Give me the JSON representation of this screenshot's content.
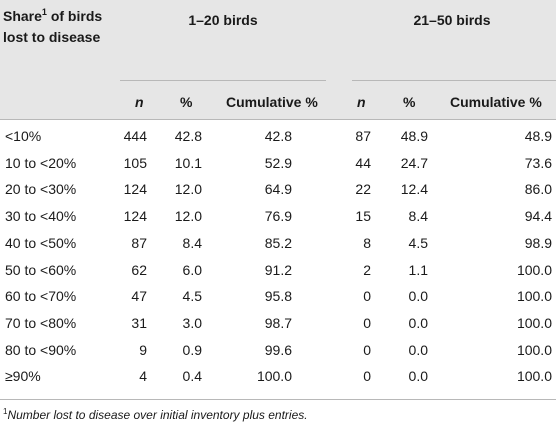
{
  "table": {
    "row_header": {
      "text": "Share",
      "sup": "1",
      "rest": " of birds lost to disease"
    },
    "groups": [
      "1–20 birds",
      "21–50 birds"
    ],
    "columns": [
      "n",
      "%",
      "Cumulative %",
      "n",
      "%",
      "Cumulative %"
    ],
    "rows": [
      {
        "label": "<10%",
        "values": [
          "444",
          "42.8",
          "42.8",
          "87",
          "48.9",
          "48.9"
        ]
      },
      {
        "label": "10 to <20%",
        "values": [
          "105",
          "10.1",
          "52.9",
          "44",
          "24.7",
          "73.6"
        ]
      },
      {
        "label": "20 to <30%",
        "values": [
          "124",
          "12.0",
          "64.9",
          "22",
          "12.4",
          "86.0"
        ]
      },
      {
        "label": "30 to <40%",
        "values": [
          "124",
          "12.0",
          "76.9",
          "15",
          "8.4",
          "94.4"
        ]
      },
      {
        "label": "40 to <50%",
        "values": [
          "87",
          "8.4",
          "85.2",
          "8",
          "4.5",
          "98.9"
        ]
      },
      {
        "label": "50 to <60%",
        "values": [
          "62",
          "6.0",
          "91.2",
          "2",
          "1.1",
          "100.0"
        ]
      },
      {
        "label": "60 to <70%",
        "values": [
          "47",
          "4.5",
          "95.8",
          "0",
          "0.0",
          "100.0"
        ]
      },
      {
        "label": "70 to <80%",
        "values": [
          "31",
          "3.0",
          "98.7",
          "0",
          "0.0",
          "100.0"
        ]
      },
      {
        "label": "80 to <90%",
        "values": [
          "9",
          "0.9",
          "99.6",
          "0",
          "0.0",
          "100.0"
        ]
      },
      {
        "label": "≥90%",
        "values": [
          "4",
          "0.4",
          "100.0",
          "0",
          "0.0",
          "100.0"
        ]
      }
    ]
  },
  "footnote": {
    "sup": "1",
    "text": "Number lost to disease over initial inventory plus entries."
  }
}
